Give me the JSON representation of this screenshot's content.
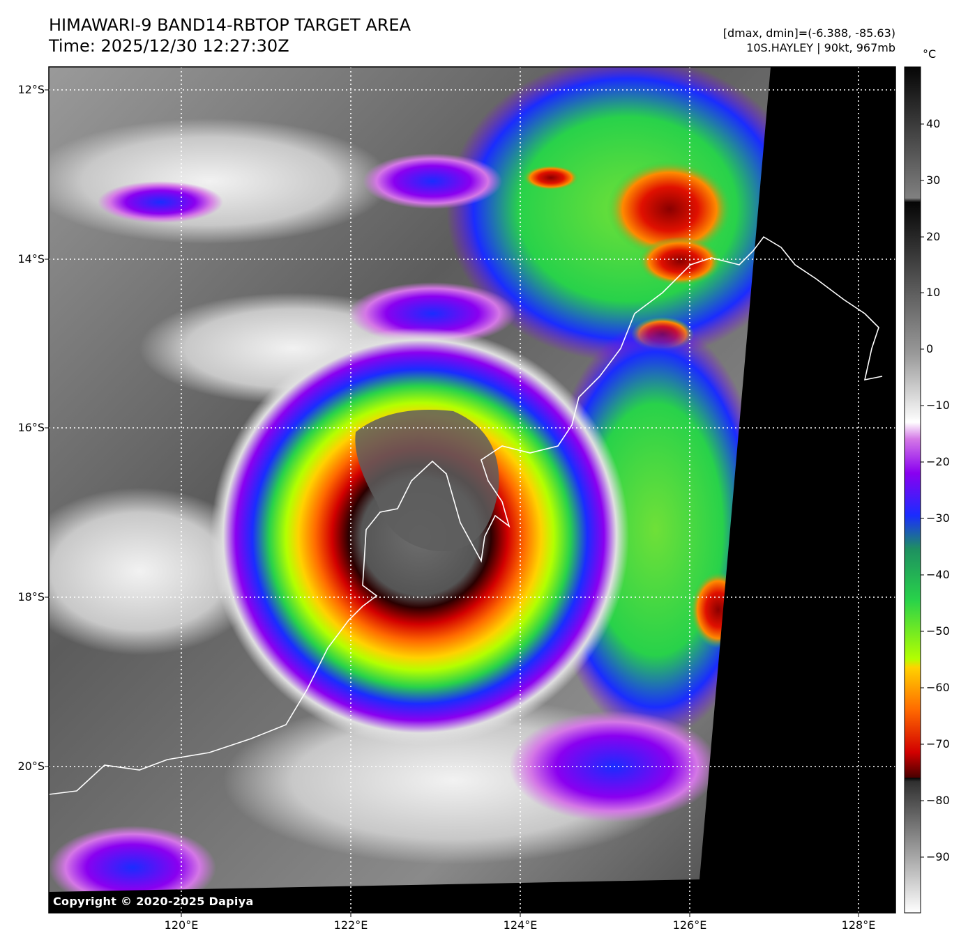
{
  "header": {
    "title_line1": "HIMAWARI-9 BAND14-RBTOP TARGET AREA",
    "title_line2": "Time: 2025/12/30 12:27:30Z",
    "info_line1": "[dmax, dmin]=(-6.388, -85.63)",
    "info_line2": "10S.HAYLEY | 90kt, 967mb"
  },
  "map": {
    "lat_ticks": [
      "12°S",
      "14°S",
      "16°S",
      "18°S",
      "20°S"
    ],
    "lon_ticks": [
      "120°E",
      "122°E",
      "124°E",
      "126°E",
      "128°E"
    ],
    "storm_center_lat": -16.9,
    "storm_center_lon": 122.8,
    "copyright": "Copyright © 2020-2025 Dapiya"
  },
  "colorbar": {
    "unit": "°C",
    "ticks": [
      "40",
      "30",
      "20",
      "10",
      "0",
      "−10",
      "−20",
      "−30",
      "−40",
      "−50",
      "−60",
      "−70",
      "−80",
      "−90"
    ],
    "colors": {
      "warm_black": "#050505",
      "gray_mid": "#6e6e6e",
      "white": "#ffffff",
      "magenta": "#d478e6",
      "purple": "#8a00f0",
      "blue": "#1a2cff",
      "green": "#28d24a",
      "lime": "#b4ff00",
      "yellow": "#ffd200",
      "orange": "#ff6a00",
      "red": "#d20000",
      "dark_red": "#4a0000"
    }
  }
}
